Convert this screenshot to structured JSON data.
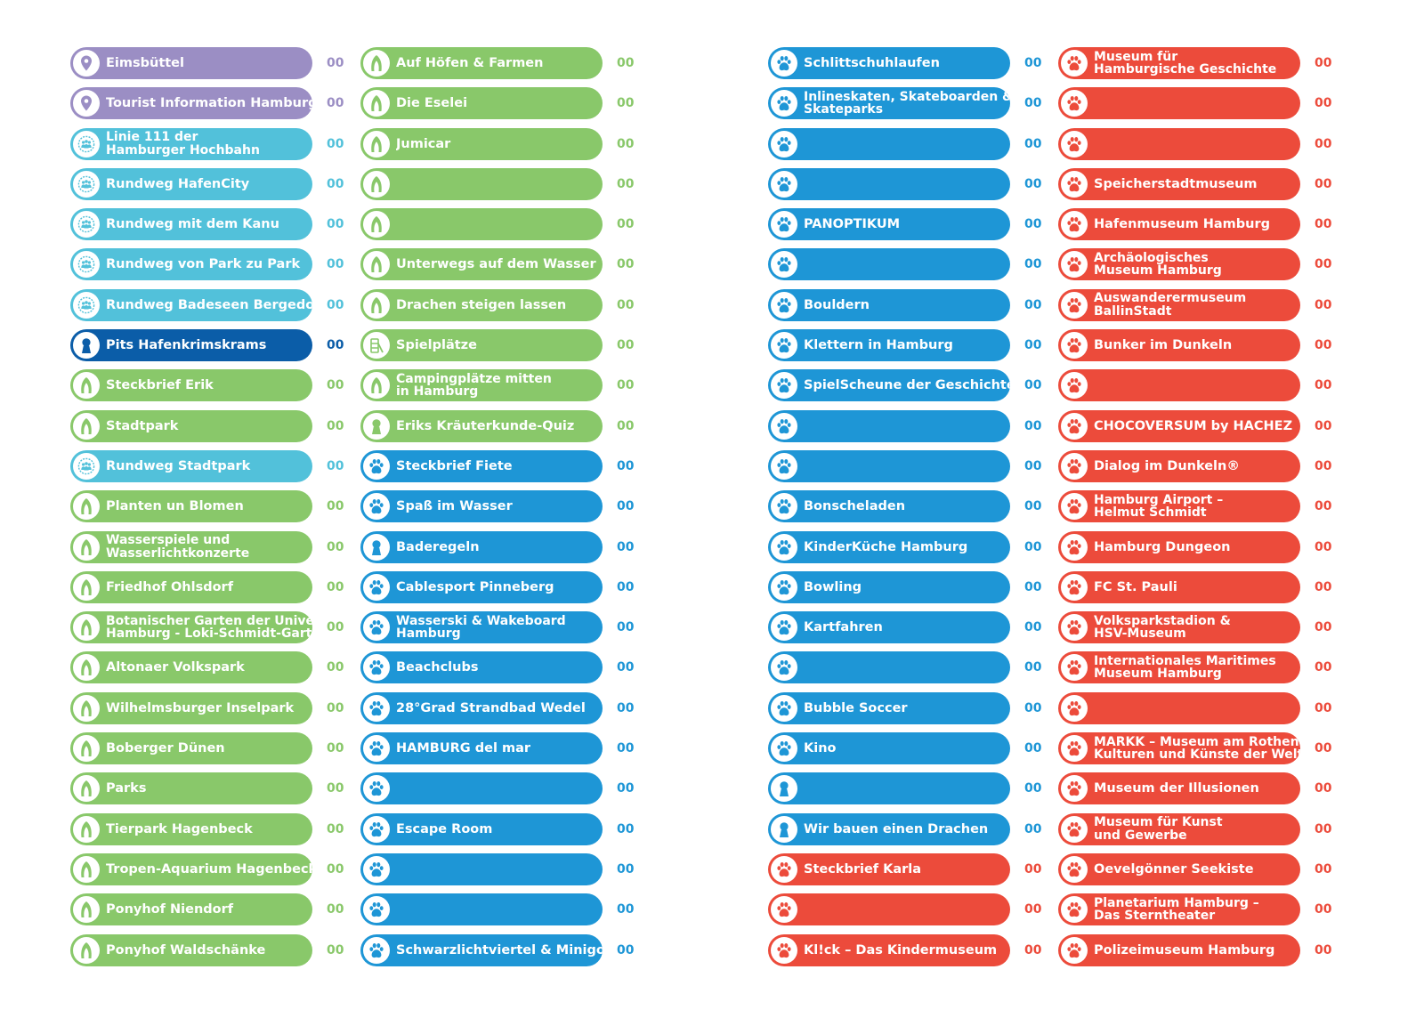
{
  "colors": {
    "purple": "#9b8ec4",
    "cyan": "#52c1da",
    "navy": "#0b5da8",
    "green": "#89c86a",
    "blue": "#1e96d6",
    "red": "#ec4b3b"
  },
  "columns": [
    {
      "items": [
        {
          "label": "Eimsbüttel",
          "value": "00",
          "color": "purple",
          "icon": "map-pin-icon"
        },
        {
          "label": "Tourist Information Hamburg",
          "value": "00",
          "color": "purple",
          "icon": "map-pin-icon"
        },
        {
          "label": "Linie 111 der\nHamburger Hochbahn",
          "value": "00",
          "color": "cyan",
          "icon": "group-badge-icon"
        },
        {
          "label": "Rundweg HafenCity",
          "value": "00",
          "color": "cyan",
          "icon": "group-badge-icon"
        },
        {
          "label": "Rundweg mit dem Kanu",
          "value": "00",
          "color": "cyan",
          "icon": "group-badge-icon"
        },
        {
          "label": "Rundweg von Park zu Park",
          "value": "00",
          "color": "cyan",
          "icon": "group-badge-icon"
        },
        {
          "label": "Rundweg Badeseen Bergedorf",
          "value": "00",
          "color": "cyan",
          "icon": "group-badge-icon"
        },
        {
          "label": "Pits Hafenkrimskrams",
          "value": "00",
          "color": "navy",
          "icon": "figure-icon"
        },
        {
          "label": "Steckbrief Erik",
          "value": "00",
          "color": "green",
          "icon": "leaf-icon"
        },
        {
          "label": "Stadtpark",
          "value": "00",
          "color": "green",
          "icon": "leaf-icon"
        },
        {
          "label": "Rundweg Stadtpark",
          "value": "00",
          "color": "cyan",
          "icon": "group-badge-icon"
        },
        {
          "label": "Planten un Blomen",
          "value": "00",
          "color": "green",
          "icon": "leaf-icon"
        },
        {
          "label": "Wasserspiele und\nWasserlichtkonzerte",
          "value": "00",
          "color": "green",
          "icon": "leaf-icon"
        },
        {
          "label": "Friedhof Ohlsdorf",
          "value": "00",
          "color": "green",
          "icon": "leaf-icon"
        },
        {
          "label": "Botanischer Garten der Universität\nHamburg - Loki-Schmidt-Garten",
          "value": "00",
          "color": "green",
          "icon": "leaf-icon"
        },
        {
          "label": "Altonaer Volkspark",
          "value": "00",
          "color": "green",
          "icon": "leaf-icon"
        },
        {
          "label": "Wilhelmsburger Inselpark",
          "value": "00",
          "color": "green",
          "icon": "leaf-icon"
        },
        {
          "label": "Boberger Dünen",
          "value": "00",
          "color": "green",
          "icon": "leaf-icon"
        },
        {
          "label": "Parks",
          "value": "00",
          "color": "green",
          "icon": "leaf-icon"
        },
        {
          "label": "Tierpark Hagenbeck",
          "value": "00",
          "color": "green",
          "icon": "leaf-icon"
        },
        {
          "label": "Tropen-Aquarium Hagenbeck",
          "value": "00",
          "color": "green",
          "icon": "leaf-icon"
        },
        {
          "label": "Ponyhof Niendorf",
          "value": "00",
          "color": "green",
          "icon": "leaf-icon"
        },
        {
          "label": "Ponyhof Waldschänke",
          "value": "00",
          "color": "green",
          "icon": "leaf-icon"
        }
      ]
    },
    {
      "items": [
        {
          "label": "Auf Höfen & Farmen",
          "value": "00",
          "color": "green",
          "icon": "leaf-icon"
        },
        {
          "label": "Die Eselei",
          "value": "00",
          "color": "green",
          "icon": "leaf-icon"
        },
        {
          "label": "Jumicar",
          "value": "00",
          "color": "green",
          "icon": "leaf-icon"
        },
        {
          "label": "",
          "value": "00",
          "color": "green",
          "icon": "leaf-icon"
        },
        {
          "label": "",
          "value": "00",
          "color": "green",
          "icon": "leaf-icon"
        },
        {
          "label": "Unterwegs auf dem Wasser",
          "value": "00",
          "color": "green",
          "icon": "leaf-icon"
        },
        {
          "label": "Drachen steigen lassen",
          "value": "00",
          "color": "green",
          "icon": "leaf-icon"
        },
        {
          "label": "Spielplätze",
          "value": "00",
          "color": "green",
          "icon": "playground-icon"
        },
        {
          "label": "Campingplätze mitten\nin Hamburg",
          "value": "00",
          "color": "green",
          "icon": "leaf-icon"
        },
        {
          "label": "Eriks Kräuterkunde-Quiz",
          "value": "00",
          "color": "green",
          "icon": "figure-icon"
        },
        {
          "label": "Steckbrief Fiete",
          "value": "00",
          "color": "blue",
          "icon": "paw-icon"
        },
        {
          "label": "Spaß im Wasser",
          "value": "00",
          "color": "blue",
          "icon": "paw-icon"
        },
        {
          "label": "Baderegeln",
          "value": "00",
          "color": "blue",
          "icon": "figure-icon"
        },
        {
          "label": "Cablesport Pinneberg",
          "value": "00",
          "color": "blue",
          "icon": "paw-icon"
        },
        {
          "label": "Wasserski & Wakeboard\nHamburg",
          "value": "00",
          "color": "blue",
          "icon": "paw-icon"
        },
        {
          "label": "Beachclubs",
          "value": "00",
          "color": "blue",
          "icon": "paw-icon"
        },
        {
          "label": "28°Grad Strandbad Wedel",
          "value": "00",
          "color": "blue",
          "icon": "paw-icon"
        },
        {
          "label": "HAMBURG del mar",
          "value": "00",
          "color": "blue",
          "icon": "paw-icon"
        },
        {
          "label": "",
          "value": "00",
          "color": "blue",
          "icon": "paw-icon"
        },
        {
          "label": "Escape Room",
          "value": "00",
          "color": "blue",
          "icon": "paw-icon"
        },
        {
          "label": "",
          "value": "00",
          "color": "blue",
          "icon": "paw-icon"
        },
        {
          "label": "",
          "value": "00",
          "color": "blue",
          "icon": "paw-icon"
        },
        {
          "label": "Schwarzlichtviertel & Minigolf",
          "value": "00",
          "color": "blue",
          "icon": "paw-icon"
        }
      ]
    },
    {
      "items": [
        {
          "label": "Schlittschuhlaufen",
          "value": "00",
          "color": "blue",
          "icon": "paw-icon"
        },
        {
          "label": "Inlineskaten, Skateboarden &\nSkateparks",
          "value": "00",
          "color": "blue",
          "icon": "paw-icon"
        },
        {
          "label": "",
          "value": "00",
          "color": "blue",
          "icon": "paw-icon"
        },
        {
          "label": "",
          "value": "00",
          "color": "blue",
          "icon": "paw-icon"
        },
        {
          "label": "PANOPTIKUM",
          "value": "00",
          "color": "blue",
          "icon": "paw-icon"
        },
        {
          "label": "",
          "value": "00",
          "color": "blue",
          "icon": "paw-icon"
        },
        {
          "label": "Bouldern",
          "value": "00",
          "color": "blue",
          "icon": "paw-icon"
        },
        {
          "label": "Klettern in Hamburg",
          "value": "00",
          "color": "blue",
          "icon": "paw-icon"
        },
        {
          "label": "SpielScheune der Geschichten",
          "value": "00",
          "color": "blue",
          "icon": "paw-icon"
        },
        {
          "label": "",
          "value": "00",
          "color": "blue",
          "icon": "paw-icon"
        },
        {
          "label": "",
          "value": "00",
          "color": "blue",
          "icon": "paw-icon"
        },
        {
          "label": "Bonscheladen",
          "value": "00",
          "color": "blue",
          "icon": "paw-icon"
        },
        {
          "label": "KinderKüche Hamburg",
          "value": "00",
          "color": "blue",
          "icon": "paw-icon"
        },
        {
          "label": "Bowling",
          "value": "00",
          "color": "blue",
          "icon": "paw-icon"
        },
        {
          "label": "Kartfahren",
          "value": "00",
          "color": "blue",
          "icon": "paw-icon"
        },
        {
          "label": "",
          "value": "00",
          "color": "blue",
          "icon": "paw-icon"
        },
        {
          "label": "Bubble Soccer",
          "value": "00",
          "color": "blue",
          "icon": "paw-icon"
        },
        {
          "label": "Kino",
          "value": "00",
          "color": "blue",
          "icon": "paw-icon"
        },
        {
          "label": "",
          "value": "00",
          "color": "blue",
          "icon": "figure-icon"
        },
        {
          "label": "Wir bauen einen Drachen",
          "value": "00",
          "color": "blue",
          "icon": "figure-icon"
        },
        {
          "label": "Steckbrief Karla",
          "value": "00",
          "color": "red",
          "icon": "paw-icon"
        },
        {
          "label": "",
          "value": "00",
          "color": "red",
          "icon": "paw-icon"
        },
        {
          "label": "Kl!ck – Das Kindermuseum",
          "value": "00",
          "color": "red",
          "icon": "paw-icon"
        }
      ]
    },
    {
      "items": [
        {
          "label": "Museum für\nHamburgische Geschichte",
          "value": "00",
          "color": "red",
          "icon": "paw-icon"
        },
        {
          "label": "",
          "value": "00",
          "color": "red",
          "icon": "paw-icon"
        },
        {
          "label": "",
          "value": "00",
          "color": "red",
          "icon": "paw-icon"
        },
        {
          "label": "Speicherstadtmuseum",
          "value": "00",
          "color": "red",
          "icon": "paw-icon"
        },
        {
          "label": "Hafenmuseum Hamburg",
          "value": "00",
          "color": "red",
          "icon": "paw-icon"
        },
        {
          "label": "Archäologisches\nMuseum Hamburg",
          "value": "00",
          "color": "red",
          "icon": "paw-icon"
        },
        {
          "label": "Auswanderermuseum\nBallinStadt",
          "value": "00",
          "color": "red",
          "icon": "paw-icon"
        },
        {
          "label": "Bunker im Dunkeln",
          "value": "00",
          "color": "red",
          "icon": "paw-icon"
        },
        {
          "label": "",
          "value": "00",
          "color": "red",
          "icon": "paw-icon"
        },
        {
          "label": "CHOCOVERSUM by HACHEZ",
          "value": "00",
          "color": "red",
          "icon": "paw-icon"
        },
        {
          "label": "Dialog im Dunkeln®",
          "value": "00",
          "color": "red",
          "icon": "paw-icon"
        },
        {
          "label": "Hamburg Airport –\nHelmut Schmidt",
          "value": "00",
          "color": "red",
          "icon": "paw-icon"
        },
        {
          "label": "Hamburg Dungeon",
          "value": "00",
          "color": "red",
          "icon": "paw-icon"
        },
        {
          "label": "FC St. Pauli",
          "value": "00",
          "color": "red",
          "icon": "paw-icon"
        },
        {
          "label": "Volksparkstadion &\nHSV-Museum",
          "value": "00",
          "color": "red",
          "icon": "paw-icon"
        },
        {
          "label": "Internationales Maritimes\nMuseum Hamburg",
          "value": "00",
          "color": "red",
          "icon": "paw-icon"
        },
        {
          "label": "",
          "value": "00",
          "color": "red",
          "icon": "paw-icon"
        },
        {
          "label": "MARKK – Museum am Rothenbaum\nKulturen und Künste der Welt",
          "value": "00",
          "color": "red",
          "icon": "paw-icon"
        },
        {
          "label": "Museum der Illusionen",
          "value": "00",
          "color": "red",
          "icon": "paw-icon"
        },
        {
          "label": "Museum für Kunst\nund Gewerbe",
          "value": "00",
          "color": "red",
          "icon": "paw-icon"
        },
        {
          "label": "Oevelgönner Seekiste",
          "value": "00",
          "color": "red",
          "icon": "paw-icon"
        },
        {
          "label": "Planetarium Hamburg –\nDas Sterntheater",
          "value": "00",
          "color": "red",
          "icon": "paw-icon"
        },
        {
          "label": "Polizeimuseum Hamburg",
          "value": "00",
          "color": "red",
          "icon": "paw-icon"
        }
      ]
    }
  ]
}
